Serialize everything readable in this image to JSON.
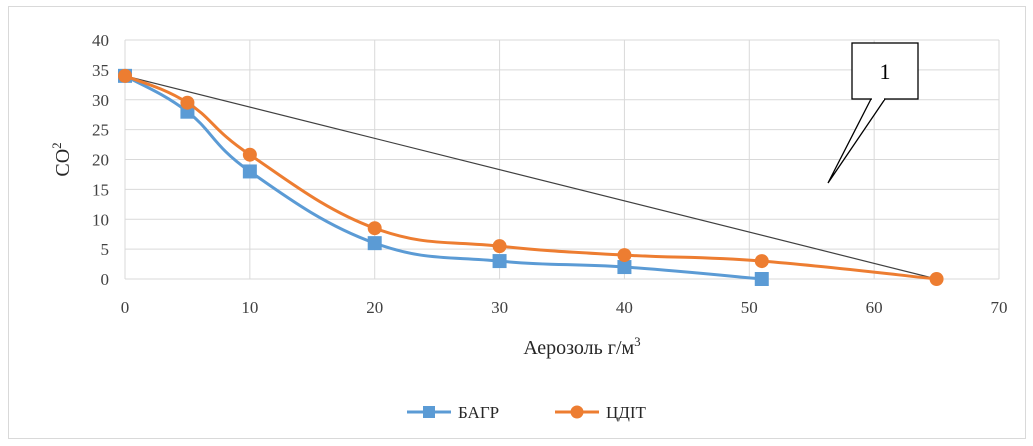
{
  "chart_data": {
    "type": "line",
    "xlabel": "Аерозоль г/м",
    "xlabel_sup": "3",
    "ylabel": "CO",
    "ylabel_sup": "2",
    "xlim": [
      0,
      70
    ],
    "ylim": [
      0,
      40
    ],
    "x_ticks": [
      0,
      10,
      20,
      30,
      40,
      50,
      60,
      70
    ],
    "y_ticks": [
      0,
      5,
      10,
      15,
      20,
      25,
      30,
      35,
      40
    ],
    "grid": true,
    "legend_position": "bottom",
    "series": [
      {
        "name": "БАГР",
        "color": "#5b9bd5",
        "marker": "square",
        "x": [
          0,
          5,
          10,
          20,
          30,
          40,
          51
        ],
        "y": [
          34,
          28,
          18,
          6,
          3,
          2,
          0
        ]
      },
      {
        "name": "ЦДІТ",
        "color": "#ed7d31",
        "marker": "circle",
        "x": [
          0,
          5,
          10,
          20,
          30,
          40,
          51,
          65
        ],
        "y": [
          34,
          29.5,
          20.8,
          8.5,
          5.5,
          4,
          3,
          0
        ]
      }
    ],
    "reference_line": {
      "x": [
        0,
        65
      ],
      "y": [
        34,
        0
      ],
      "color": "#404040"
    },
    "annotation": {
      "label": "1"
    }
  }
}
